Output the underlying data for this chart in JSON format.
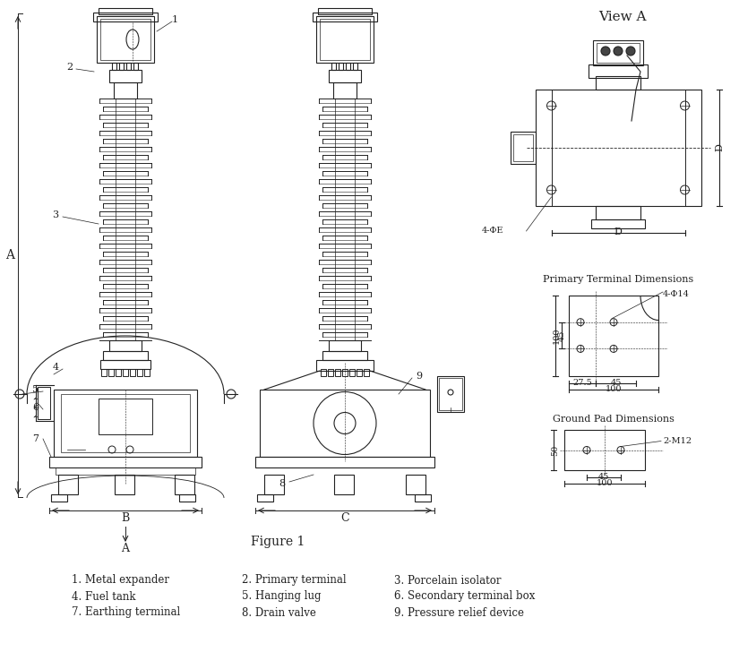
{
  "title": "Figure 1",
  "background_color": "#ffffff",
  "line_color": "#222222",
  "legend_items": [
    "1. Metal expander",
    "2. Primary terminal",
    "3. Porcelain isolator",
    "4. Fuel tank",
    "5. Hanging lug",
    "6. Secondary terminal box",
    "7. Earthing terminal",
    "8. Drain valve",
    "9. Pressure relief device"
  ],
  "view_a_label": "View A",
  "primary_terminal_label": "Primary Terminal Dimensions",
  "ground_pad_label": "Ground Pad Dimensions"
}
